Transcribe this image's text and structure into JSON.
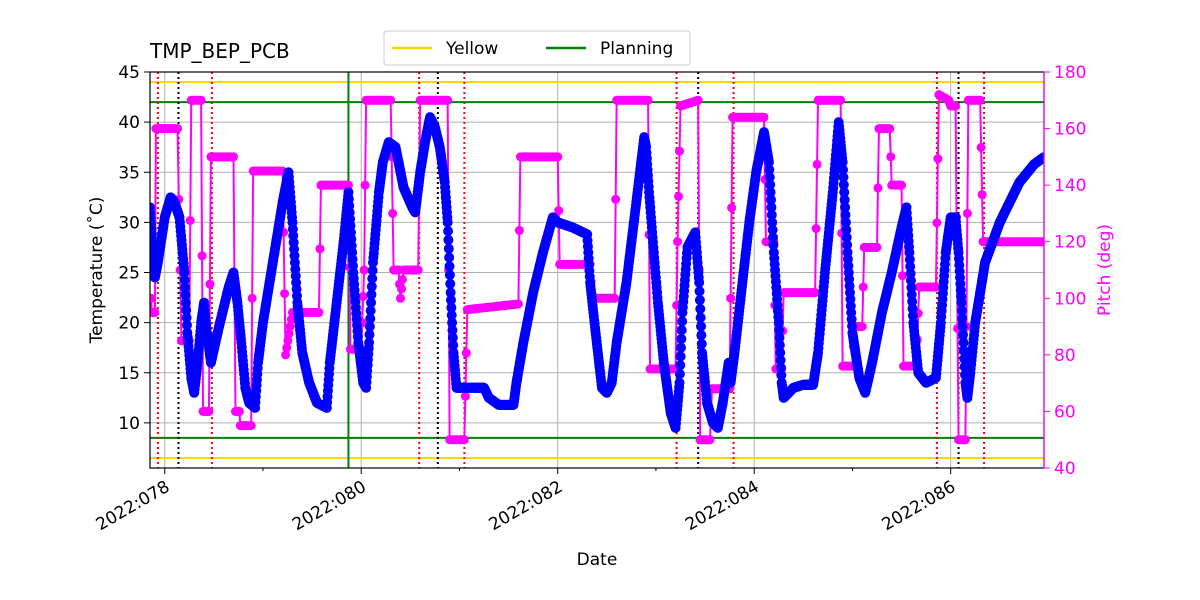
{
  "chart_data": {
    "type": "line",
    "title": "TMP_BEP_PCB",
    "xlabel": "Date",
    "ylabel": "Temperature ($^\\circ$C)",
    "ylabel_display": "Temperature (˚C)",
    "y2label": "Pitch (deg)",
    "xlim": [
      77.85,
      86.95
    ],
    "ylim": [
      5.5,
      45
    ],
    "y2lim": [
      40,
      180
    ],
    "x_ticks": [
      {
        "value": 78,
        "label": "2022:078"
      },
      {
        "value": 80,
        "label": "2022:080"
      },
      {
        "value": 82,
        "label": "2022:082"
      },
      {
        "value": 84,
        "label": "2022:084"
      },
      {
        "value": 86,
        "label": "2022:086"
      }
    ],
    "x_minor_ticks": [
      79,
      81,
      83,
      85
    ],
    "y_ticks": [
      10,
      15,
      20,
      25,
      30,
      35,
      40,
      45
    ],
    "y2_ticks": [
      40,
      60,
      80,
      100,
      120,
      140,
      160,
      180
    ],
    "grid": true,
    "legend": {
      "location": "top-center",
      "entries": [
        {
          "label": "Yellow",
          "color": "#ffd700"
        },
        {
          "label": "Planning",
          "color": "#008000"
        }
      ]
    },
    "limits": [
      {
        "name": "Yellow",
        "color": "#ffd700",
        "values": [
          44,
          6.5
        ]
      },
      {
        "name": "Planning",
        "color": "#008000",
        "values": [
          42,
          8.5
        ]
      }
    ],
    "current_time": {
      "x": 79.87,
      "color": "#008000"
    },
    "red_vlines": [
      77.93,
      78.48,
      80.59,
      81.05,
      83.21,
      83.79,
      85.86,
      86.34
    ],
    "black_vlines": [
      78.14,
      80.78,
      83.43,
      86.08
    ],
    "temperature": {
      "name": "TMP_BEP_PCB",
      "color": "#0000ff",
      "points": [
        [
          77.85,
          31.5
        ],
        [
          77.9,
          24.5
        ],
        [
          77.93,
          26
        ],
        [
          78.0,
          30.5
        ],
        [
          78.06,
          32.5
        ],
        [
          78.1,
          32
        ],
        [
          78.15,
          30.5
        ],
        [
          78.2,
          25
        ],
        [
          78.23,
          19
        ],
        [
          78.27,
          14.5
        ],
        [
          78.3,
          13
        ],
        [
          78.34,
          16.5
        ],
        [
          78.37,
          20
        ],
        [
          78.4,
          22
        ],
        [
          78.43,
          19
        ],
        [
          78.47,
          16
        ],
        [
          78.55,
          19.5
        ],
        [
          78.65,
          23.5
        ],
        [
          78.7,
          25
        ],
        [
          78.74,
          22
        ],
        [
          78.78,
          18
        ],
        [
          78.82,
          13.5
        ],
        [
          78.86,
          12
        ],
        [
          78.92,
          11.5
        ],
        [
          78.95,
          16
        ],
        [
          79.0,
          20
        ],
        [
          79.1,
          26
        ],
        [
          79.2,
          32
        ],
        [
          79.26,
          35
        ],
        [
          79.3,
          30
        ],
        [
          79.35,
          22
        ],
        [
          79.4,
          17
        ],
        [
          79.47,
          14
        ],
        [
          79.55,
          12
        ],
        [
          79.65,
          11.5
        ],
        [
          79.68,
          16
        ],
        [
          79.75,
          22
        ],
        [
          79.82,
          28
        ],
        [
          79.87,
          33
        ],
        [
          79.92,
          25
        ],
        [
          79.97,
          18
        ],
        [
          80.02,
          14
        ],
        [
          80.05,
          13.5
        ],
        [
          80.08,
          18
        ],
        [
          80.12,
          26
        ],
        [
          80.18,
          33
        ],
        [
          80.22,
          36
        ],
        [
          80.28,
          38
        ],
        [
          80.35,
          37.5
        ],
        [
          80.43,
          33.5
        ],
        [
          80.52,
          31.5
        ],
        [
          80.55,
          31
        ],
        [
          80.6,
          35
        ],
        [
          80.65,
          38
        ],
        [
          80.7,
          40.5
        ],
        [
          80.75,
          39.5
        ],
        [
          80.8,
          37.5
        ],
        [
          80.85,
          34
        ],
        [
          80.88,
          30
        ],
        [
          80.91,
          23
        ],
        [
          80.94,
          17
        ],
        [
          80.97,
          13.5
        ],
        [
          81.05,
          13.5
        ],
        [
          81.15,
          13.5
        ],
        [
          81.25,
          13.5
        ],
        [
          81.3,
          12.5
        ],
        [
          81.4,
          11.8
        ],
        [
          81.55,
          11.8
        ],
        [
          81.58,
          14
        ],
        [
          81.65,
          18
        ],
        [
          81.75,
          23
        ],
        [
          81.85,
          27
        ],
        [
          81.95,
          30.5
        ],
        [
          82.0,
          30
        ],
        [
          82.15,
          29.5
        ],
        [
          82.3,
          28.8
        ],
        [
          82.33,
          24
        ],
        [
          82.38,
          19.5
        ],
        [
          82.45,
          13.5
        ],
        [
          82.5,
          13
        ],
        [
          82.55,
          14
        ],
        [
          82.6,
          18
        ],
        [
          82.7,
          24
        ],
        [
          82.8,
          32
        ],
        [
          82.88,
          38.5
        ],
        [
          82.9,
          37.5
        ],
        [
          82.93,
          33
        ],
        [
          82.97,
          28
        ],
        [
          83.02,
          22
        ],
        [
          83.08,
          16
        ],
        [
          83.15,
          11
        ],
        [
          83.2,
          9.5
        ],
        [
          83.24,
          14
        ],
        [
          83.27,
          21
        ],
        [
          83.32,
          27.5
        ],
        [
          83.4,
          29
        ],
        [
          83.44,
          24
        ],
        [
          83.47,
          17
        ],
        [
          83.52,
          12
        ],
        [
          83.58,
          10
        ],
        [
          83.63,
          9.5
        ],
        [
          83.68,
          12
        ],
        [
          83.74,
          16
        ],
        [
          83.76,
          14
        ],
        [
          83.8,
          17
        ],
        [
          83.88,
          24
        ],
        [
          83.95,
          30
        ],
        [
          84.02,
          35
        ],
        [
          84.1,
          39
        ],
        [
          84.15,
          36
        ],
        [
          84.2,
          27
        ],
        [
          84.25,
          20
        ],
        [
          84.28,
          14
        ],
        [
          84.3,
          12.5
        ],
        [
          84.4,
          13.5
        ],
        [
          84.5,
          13.8
        ],
        [
          84.6,
          13.8
        ],
        [
          84.65,
          17
        ],
        [
          84.72,
          25
        ],
        [
          84.8,
          33
        ],
        [
          84.86,
          40
        ],
        [
          84.9,
          36
        ],
        [
          84.95,
          27
        ],
        [
          85.0,
          19
        ],
        [
          85.07,
          14.5
        ],
        [
          85.13,
          13
        ],
        [
          85.2,
          16
        ],
        [
          85.3,
          21
        ],
        [
          85.4,
          25
        ],
        [
          85.5,
          29.5
        ],
        [
          85.55,
          31.5
        ],
        [
          85.58,
          27
        ],
        [
          85.62,
          20
        ],
        [
          85.67,
          15
        ],
        [
          85.75,
          14
        ],
        [
          85.85,
          14.5
        ],
        [
          85.9,
          20
        ],
        [
          85.95,
          27
        ],
        [
          86.0,
          30.5
        ],
        [
          86.05,
          30.5
        ],
        [
          86.08,
          27
        ],
        [
          86.11,
          22
        ],
        [
          86.15,
          14
        ],
        [
          86.17,
          12.5
        ],
        [
          86.2,
          15
        ],
        [
          86.25,
          20
        ],
        [
          86.35,
          26
        ],
        [
          86.5,
          30
        ],
        [
          86.7,
          34
        ],
        [
          86.85,
          35.8
        ],
        [
          86.95,
          36.5
        ]
      ]
    },
    "pitch": {
      "name": "Pitch",
      "color": "#ff00ff",
      "points": [
        [
          77.85,
          100
        ],
        [
          77.86,
          100
        ],
        [
          77.87,
          95
        ],
        [
          77.9,
          95
        ],
        [
          77.91,
          160
        ],
        [
          77.99,
          160
        ],
        [
          78.0,
          160
        ],
        [
          78.12,
          160
        ],
        [
          78.13,
          160
        ],
        [
          78.17,
          85
        ],
        [
          78.25,
          85
        ],
        [
          78.27,
          170
        ],
        [
          78.37,
          170
        ],
        [
          78.39,
          60
        ],
        [
          78.45,
          60
        ],
        [
          78.47,
          150
        ],
        [
          78.7,
          150
        ],
        [
          78.72,
          60
        ],
        [
          78.76,
          60
        ],
        [
          78.77,
          55
        ],
        [
          78.88,
          55
        ],
        [
          78.9,
          145
        ],
        [
          79.2,
          145
        ],
        [
          79.23,
          80
        ],
        [
          79.3,
          95
        ],
        [
          79.57,
          95
        ],
        [
          79.59,
          140
        ],
        [
          79.87,
          140
        ],
        [
          79.89,
          82
        ],
        [
          80.0,
          82
        ],
        [
          80.03,
          110
        ],
        [
          80.05,
          170
        ],
        [
          80.3,
          170
        ],
        [
          80.33,
          110
        ],
        [
          80.38,
          110
        ],
        [
          80.4,
          100
        ],
        [
          80.43,
          110
        ],
        [
          80.58,
          110
        ],
        [
          80.6,
          170
        ],
        [
          80.88,
          170
        ],
        [
          80.9,
          50
        ],
        [
          81.05,
          50
        ],
        [
          81.08,
          96
        ],
        [
          81.6,
          98
        ],
        [
          81.62,
          150
        ],
        [
          82.0,
          150
        ],
        [
          82.02,
          112
        ],
        [
          82.33,
          112
        ],
        [
          82.35,
          100
        ],
        [
          82.58,
          100
        ],
        [
          82.6,
          170
        ],
        [
          82.92,
          170
        ],
        [
          82.94,
          75
        ],
        [
          83.2,
          75
        ],
        [
          83.22,
          120
        ],
        [
          83.25,
          168
        ],
        [
          83.43,
          170
        ],
        [
          83.45,
          50
        ],
        [
          83.55,
          50
        ],
        [
          83.57,
          68
        ],
        [
          83.75,
          68
        ],
        [
          83.78,
          164
        ],
        [
          84.1,
          164
        ],
        [
          84.12,
          120
        ],
        [
          84.2,
          120
        ],
        [
          84.22,
          75
        ],
        [
          84.28,
          75
        ],
        [
          84.3,
          102
        ],
        [
          84.62,
          102
        ],
        [
          84.65,
          170
        ],
        [
          84.88,
          170
        ],
        [
          84.9,
          76
        ],
        [
          85.0,
          76
        ],
        [
          85.02,
          90
        ],
        [
          85.1,
          90
        ],
        [
          85.12,
          118
        ],
        [
          85.25,
          118
        ],
        [
          85.27,
          160
        ],
        [
          85.38,
          160
        ],
        [
          85.4,
          140
        ],
        [
          85.5,
          140
        ],
        [
          85.52,
          76
        ],
        [
          85.65,
          76
        ],
        [
          85.68,
          104
        ],
        [
          85.85,
          104
        ],
        [
          85.88,
          172
        ],
        [
          85.98,
          170
        ],
        [
          86.0,
          168
        ],
        [
          86.05,
          168
        ],
        [
          86.08,
          50
        ],
        [
          86.15,
          50
        ],
        [
          86.18,
          170
        ],
        [
          86.3,
          170
        ],
        [
          86.33,
          120
        ],
        [
          86.95,
          120
        ]
      ]
    }
  }
}
